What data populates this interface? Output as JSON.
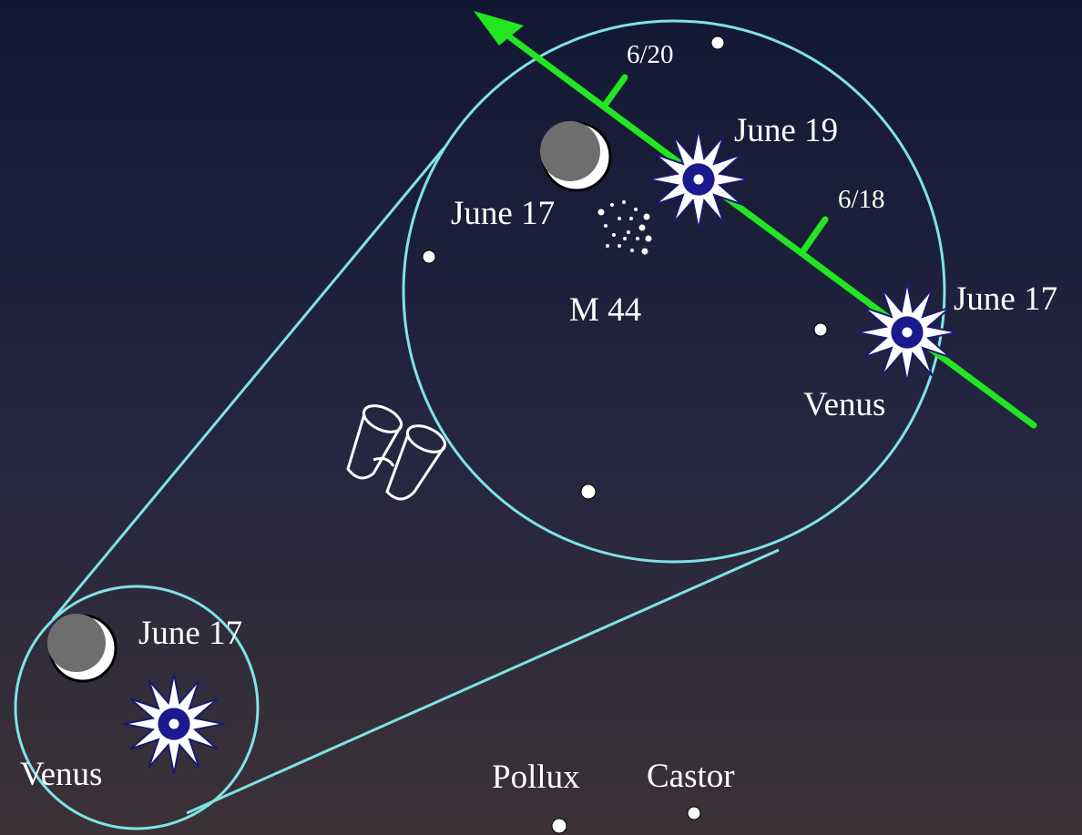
{
  "big_view": {
    "moon_label": "June 17",
    "cluster_label": "M 44",
    "venus_path": {
      "tick_upper": "6/20",
      "tick_lower": "6/18",
      "venus_upper": "June 19",
      "venus_lower": "June 17",
      "planet": "Venus"
    }
  },
  "small_view": {
    "moon_label": "June 17",
    "planet": "Venus"
  },
  "stars": {
    "pollux": "Pollux",
    "castor": "Castor"
  }
}
